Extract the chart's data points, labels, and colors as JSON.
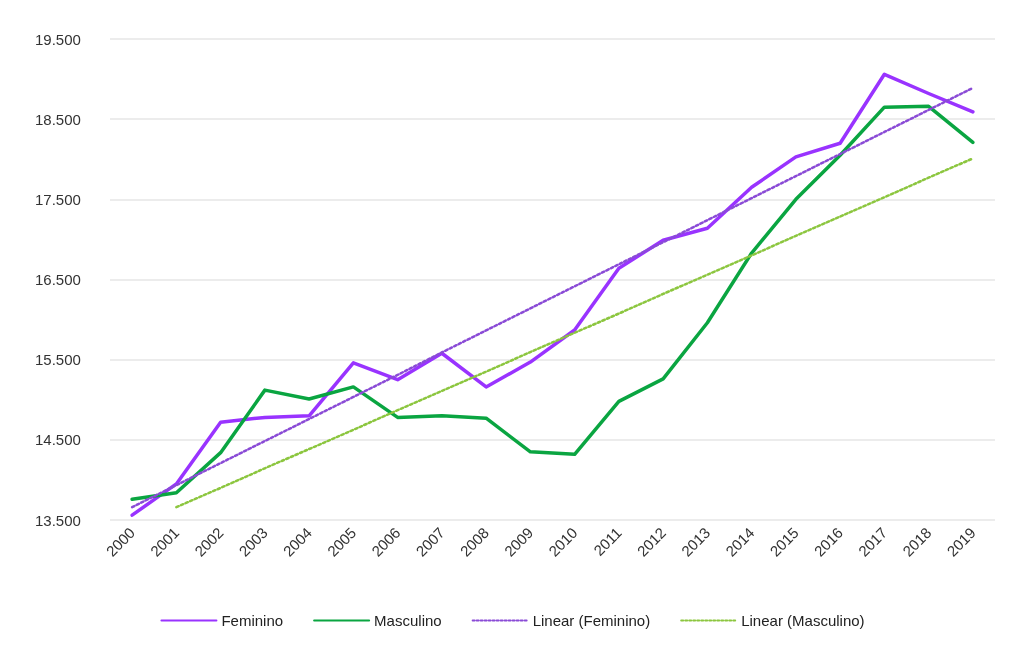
{
  "chart_data": {
    "type": "line",
    "categories": [
      "2000",
      "2001",
      "2002",
      "2003",
      "2004",
      "2005",
      "2006",
      "2007",
      "2008",
      "2009",
      "2010",
      "2011",
      "2012",
      "2013",
      "2014",
      "2015",
      "2016",
      "2017",
      "2018",
      "2019"
    ],
    "series": [
      {
        "name": "Feminino",
        "color": "#9933ff",
        "line_style": "solid",
        "values": [
          13560,
          13950,
          14720,
          14780,
          14800,
          15460,
          15250,
          15580,
          15160,
          15470,
          15870,
          16640,
          16990,
          17140,
          17650,
          18030,
          18200,
          19060,
          18820,
          18590
        ]
      },
      {
        "name": "Masculino",
        "color": "#0aa541",
        "line_style": "solid",
        "values": [
          13760,
          13840,
          14340,
          15120,
          15010,
          15160,
          14780,
          14800,
          14770,
          14350,
          14320,
          14980,
          15260,
          15960,
          16830,
          17500,
          18050,
          18650,
          18660,
          18210
        ]
      },
      {
        "name": "Linear (Feminino)",
        "color": "#8a4bd6",
        "line_style": "dotted",
        "values": [
          13660,
          13935,
          14210,
          14485,
          14760,
          15035,
          15310,
          15590,
          15865,
          16140,
          16415,
          16690,
          16965,
          17240,
          17515,
          17790,
          18065,
          18340,
          18615,
          18890
        ]
      },
      {
        "name": "Linear (Masculino)",
        "color": "#8cc63f",
        "line_style": "dotted",
        "values": [
          null,
          13660,
          13900,
          14145,
          14385,
          14625,
          14870,
          15110,
          15350,
          15595,
          15835,
          16075,
          16320,
          16560,
          16800,
          17045,
          17285,
          17525,
          17770,
          18010
        ]
      }
    ],
    "ylim": [
      13500,
      19500
    ],
    "yticks": [
      {
        "value": 13500,
        "label": "13.500"
      },
      {
        "value": 14500,
        "label": "14.500"
      },
      {
        "value": 15500,
        "label": "15.500"
      },
      {
        "value": 16500,
        "label": "16.500"
      },
      {
        "value": 17500,
        "label": "17.500"
      },
      {
        "value": 18500,
        "label": "18.500"
      },
      {
        "value": 19500,
        "label": "19.500"
      }
    ],
    "grid": "y",
    "legend": "bottom",
    "marker": "none"
  }
}
